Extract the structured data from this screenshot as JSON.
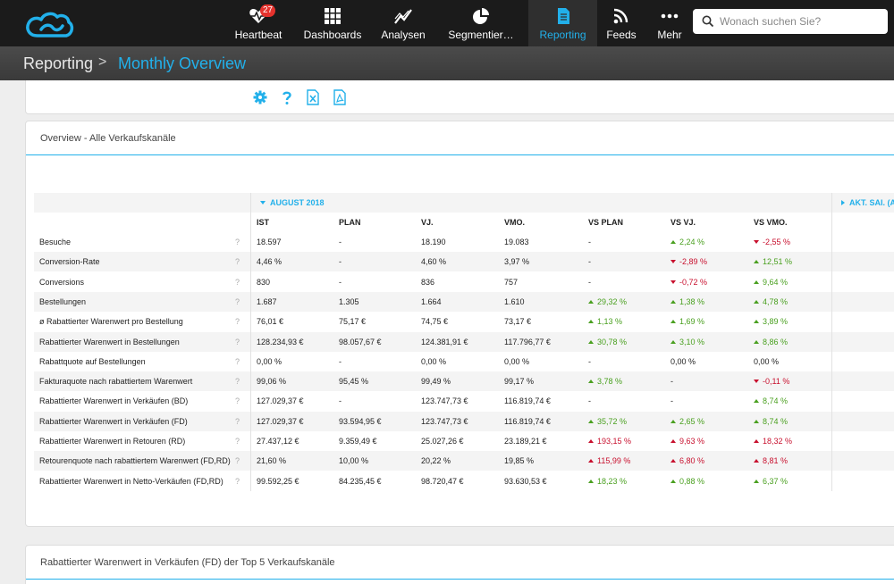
{
  "nav": {
    "items": [
      {
        "label": "Heartbeat",
        "icon": "heartbeat-icon",
        "badge": "27"
      },
      {
        "label": "Dashboards",
        "icon": "grid-icon"
      },
      {
        "label": "Analysen",
        "icon": "line-chart-icon"
      },
      {
        "label": "Segmentier…",
        "icon": "pie-chart-icon"
      },
      {
        "label": "Reporting",
        "icon": "document-icon",
        "active": true
      },
      {
        "label": "Feeds",
        "icon": "rss-icon"
      },
      {
        "label": "Mehr",
        "icon": "more-icon"
      }
    ],
    "search_placeholder": "Wonach suchen Sie?",
    "accent": "#22b0ea"
  },
  "breadcrumb": {
    "parent": "Reporting",
    "separator": ">",
    "current": "Monthly Overview"
  },
  "toolbar": {
    "icons": [
      "gear-icon",
      "help-icon",
      "excel-export-icon",
      "pdf-export-icon"
    ]
  },
  "panel1": {
    "title": "Overview - Alle Verkaufskanäle",
    "period_label": "AUGUST 2018",
    "next_period_label": "AKT. SAI. (A",
    "columns": [
      "IST",
      "PLAN",
      "VJ.",
      "VMO.",
      "VS PLAN",
      "VS VJ.",
      "VS VMO."
    ],
    "rows": [
      {
        "label": "Besuche",
        "ist": "18.597",
        "plan": "-",
        "vj": "18.190",
        "vmo": "19.083",
        "vs_plan": "-",
        "vs_plan_dir": "none",
        "vs_vj": "2,24 %",
        "vs_vj_dir": "up",
        "vs_vmo": "-2,55 %",
        "vs_vmo_dir": "down"
      },
      {
        "label": "Conversion-Rate",
        "ist": "4,46 %",
        "plan": "-",
        "vj": "4,60 %",
        "vmo": "3,97 %",
        "vs_plan": "-",
        "vs_plan_dir": "none",
        "vs_vj": "-2,89 %",
        "vs_vj_dir": "down",
        "vs_vmo": "12,51 %",
        "vs_vmo_dir": "up"
      },
      {
        "label": "Conversions",
        "ist": "830",
        "plan": "-",
        "vj": "836",
        "vmo": "757",
        "vs_plan": "-",
        "vs_plan_dir": "none",
        "vs_vj": "-0,72 %",
        "vs_vj_dir": "down",
        "vs_vmo": "9,64 %",
        "vs_vmo_dir": "up"
      },
      {
        "label": "Bestellungen",
        "ist": "1.687",
        "plan": "1.305",
        "vj": "1.664",
        "vmo": "1.610",
        "vs_plan": "29,32 %",
        "vs_plan_dir": "up",
        "vs_vj": "1,38 %",
        "vs_vj_dir": "up",
        "vs_vmo": "4,78 %",
        "vs_vmo_dir": "up"
      },
      {
        "label": "ø Rabattierter Warenwert pro Bestellung",
        "ist": "76,01 €",
        "plan": "75,17 €",
        "vj": "74,75 €",
        "vmo": "73,17 €",
        "vs_plan": "1,13 %",
        "vs_plan_dir": "up",
        "vs_vj": "1,69 %",
        "vs_vj_dir": "up",
        "vs_vmo": "3,89 %",
        "vs_vmo_dir": "up"
      },
      {
        "label": "Rabattierter Warenwert in Bestellungen",
        "ist": "128.234,93 €",
        "plan": "98.057,67 €",
        "vj": "124.381,91 €",
        "vmo": "117.796,77 €",
        "vs_plan": "30,78 %",
        "vs_plan_dir": "up",
        "vs_vj": "3,10 %",
        "vs_vj_dir": "up",
        "vs_vmo": "8,86 %",
        "vs_vmo_dir": "up"
      },
      {
        "label": "Rabattquote auf Bestellungen",
        "ist": "0,00 %",
        "plan": "-",
        "vj": "0,00 %",
        "vmo": "0,00 %",
        "vs_plan": "-",
        "vs_plan_dir": "none",
        "vs_vj": "0,00 %",
        "vs_vj_dir": "none",
        "vs_vmo": "0,00 %",
        "vs_vmo_dir": "none"
      },
      {
        "label": "Fakturaquote nach rabattiertem Warenwert",
        "ist": "99,06 %",
        "plan": "95,45 %",
        "vj": "99,49 %",
        "vmo": "99,17 %",
        "vs_plan": "3,78 %",
        "vs_plan_dir": "up",
        "vs_vj": "-",
        "vs_vj_dir": "none",
        "vs_vmo": "-0,11 %",
        "vs_vmo_dir": "down"
      },
      {
        "label": "Rabattierter Warenwert in Verkäufen (BD)",
        "ist": "127.029,37 €",
        "plan": "-",
        "vj": "123.747,73 €",
        "vmo": "116.819,74 €",
        "vs_plan": "-",
        "vs_plan_dir": "none",
        "vs_vj": "-",
        "vs_vj_dir": "none",
        "vs_vmo": "8,74 %",
        "vs_vmo_dir": "up"
      },
      {
        "label": "Rabattierter Warenwert in Verkäufen (FD)",
        "ist": "127.029,37 €",
        "plan": "93.594,95 €",
        "vj": "123.747,73 €",
        "vmo": "116.819,74 €",
        "vs_plan": "35,72 %",
        "vs_plan_dir": "up",
        "vs_vj": "2,65 %",
        "vs_vj_dir": "up",
        "vs_vmo": "8,74 %",
        "vs_vmo_dir": "up"
      },
      {
        "label": "Rabattierter Warenwert in Retouren (RD)",
        "ist": "27.437,12 €",
        "plan": "9.359,49 €",
        "vj": "25.027,26 €",
        "vmo": "23.189,21 €",
        "vs_plan": "193,15 %",
        "vs_plan_dir": "upred",
        "vs_vj": "9,63 %",
        "vs_vj_dir": "upred",
        "vs_vmo": "18,32 %",
        "vs_vmo_dir": "upred"
      },
      {
        "label": "Retourenquote nach rabattiertem Warenwert (FD,RD)",
        "ist": "21,60 %",
        "plan": "10,00 %",
        "vj": "20,22 %",
        "vmo": "19,85 %",
        "vs_plan": "115,99 %",
        "vs_plan_dir": "upred",
        "vs_vj": "6,80 %",
        "vs_vj_dir": "upred",
        "vs_vmo": "8,81 %",
        "vs_vmo_dir": "upred"
      },
      {
        "label": "Rabattierter Warenwert in Netto-Verkäufen (FD,RD)",
        "ist": "99.592,25 €",
        "plan": "84.235,45 €",
        "vj": "98.720,47 €",
        "vmo": "93.630,53 €",
        "vs_plan": "18,23 %",
        "vs_plan_dir": "up",
        "vs_vj": "0,88 %",
        "vs_vj_dir": "up",
        "vs_vmo": "6,37 %",
        "vs_vmo_dir": "up"
      }
    ]
  },
  "panel2": {
    "title": "Rabattierter Warenwert in Verkäufen (FD) der Top 5 Verkaufskanäle"
  }
}
